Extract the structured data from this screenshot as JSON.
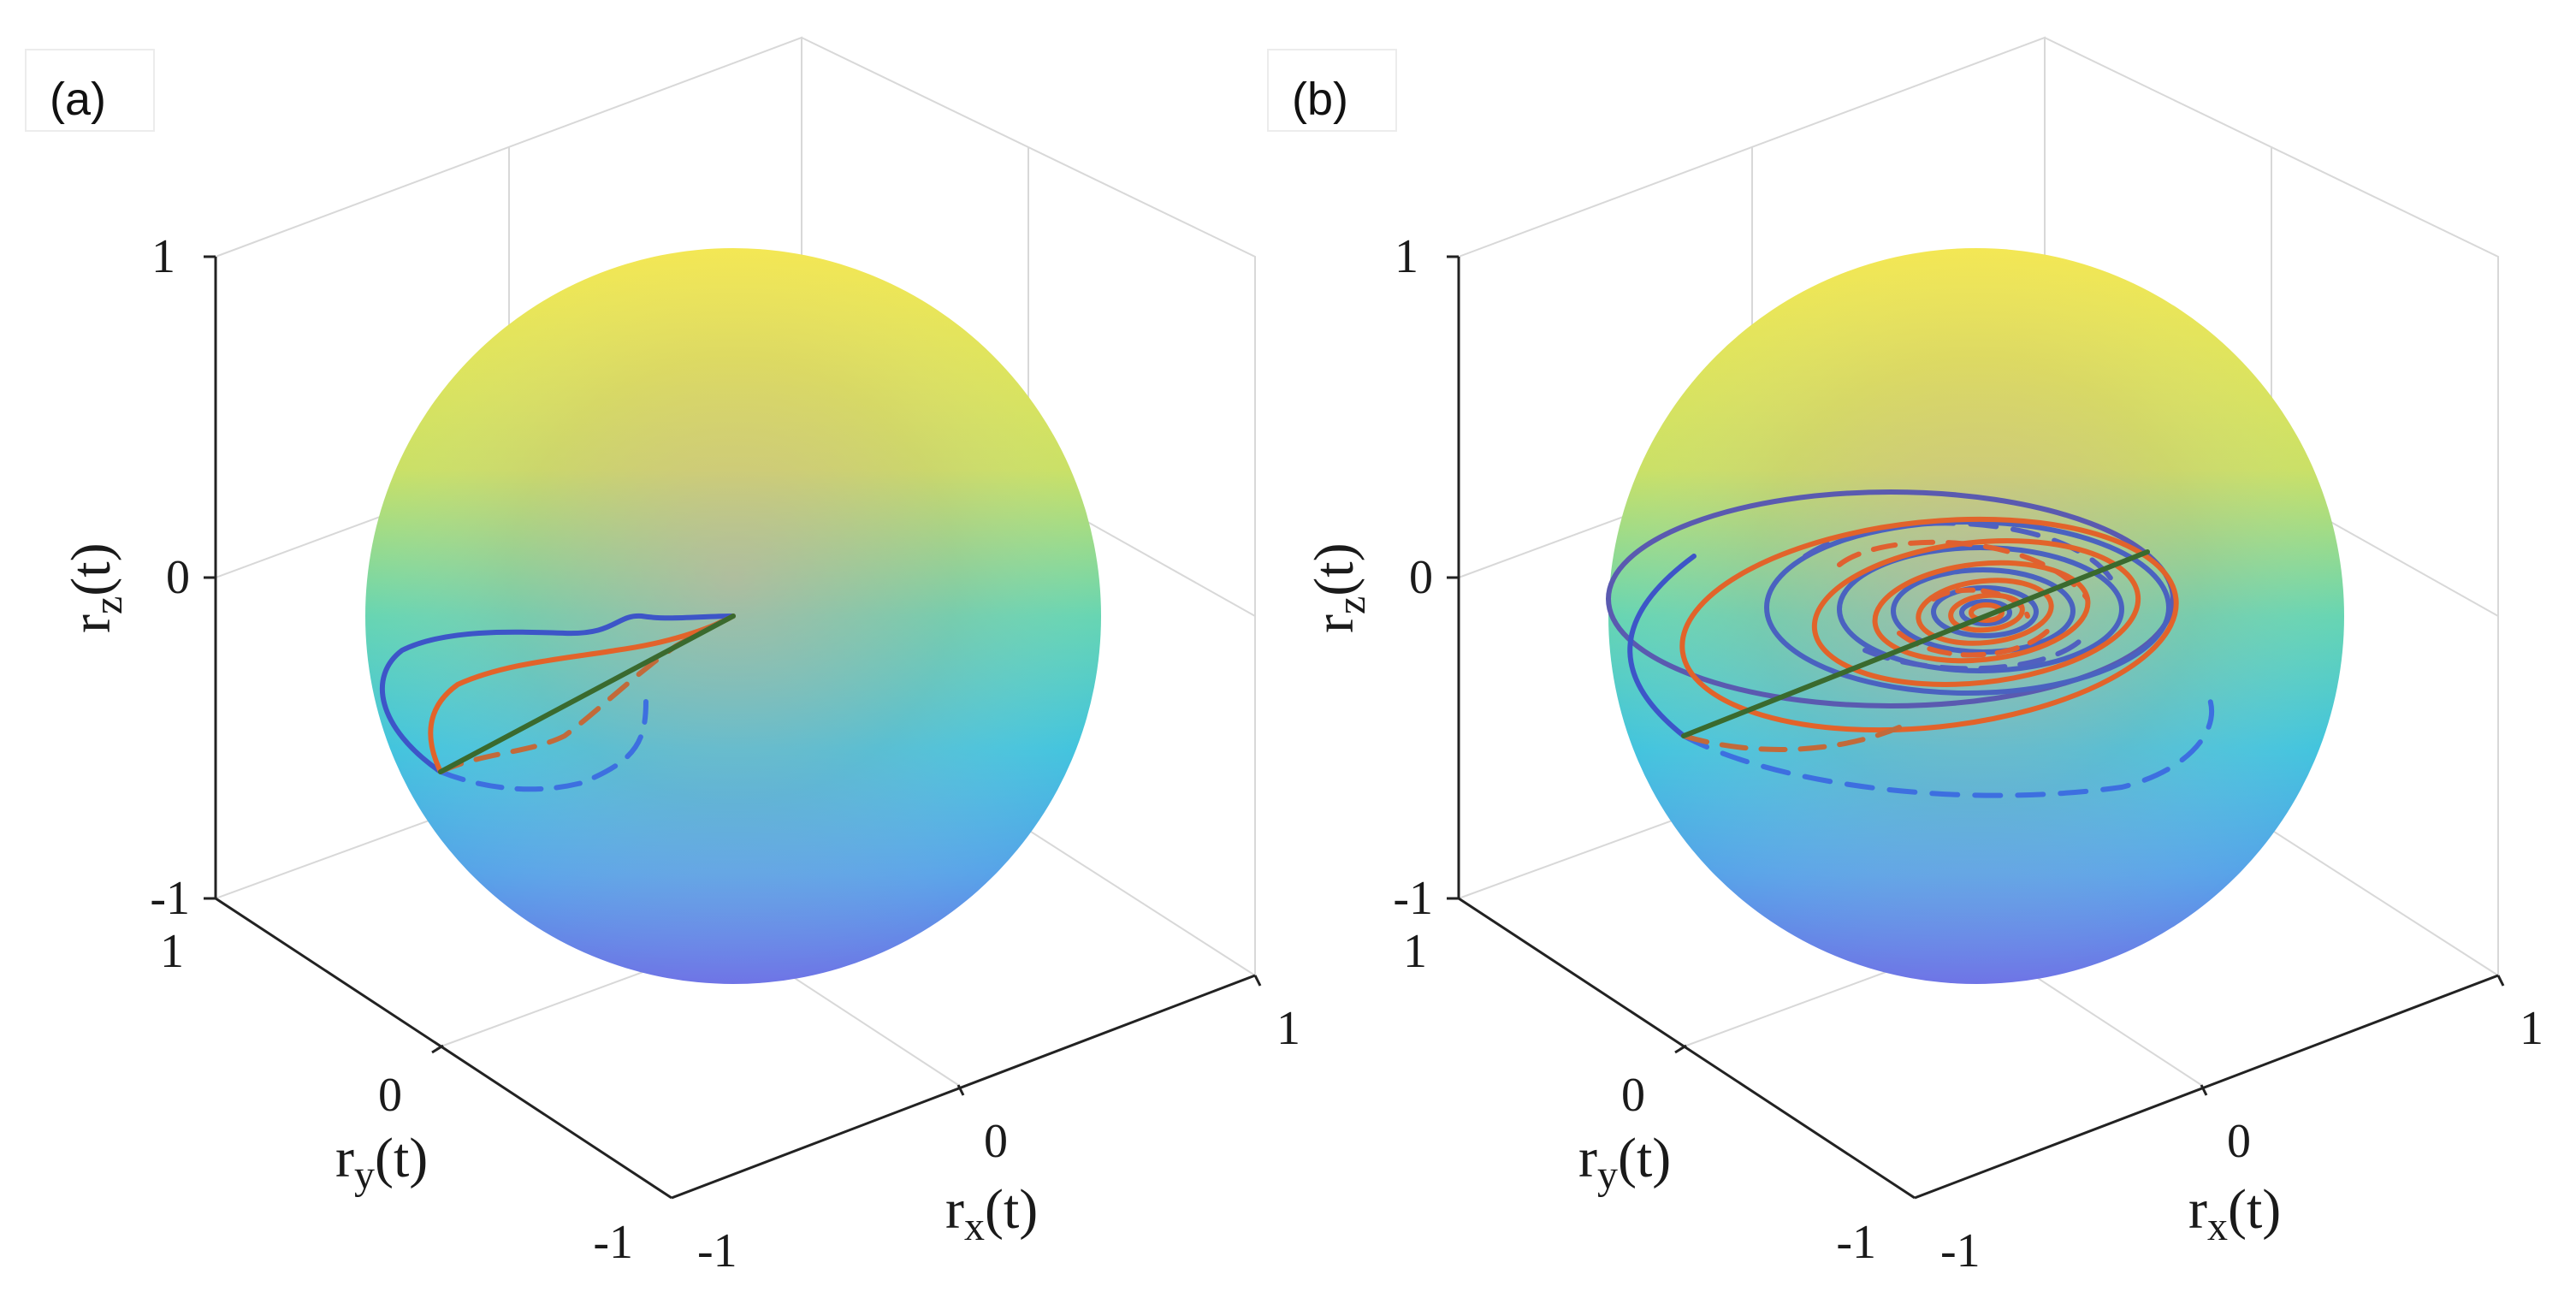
{
  "chart_data": [
    {
      "type": "line",
      "subtype": "3d-trajectory-on-bloch-sphere",
      "panel_label": "(a)",
      "title": "",
      "xlabel": "r_x(t)",
      "ylabel": "r_y(t)",
      "zlabel": "r_z(t)",
      "x_ticks": [
        "-1",
        "0",
        "1"
      ],
      "y_ticks": [
        "-1",
        "0",
        "1"
      ],
      "z_ticks": [
        "-1",
        "0",
        "1"
      ],
      "xlim": [
        -1,
        1
      ],
      "ylim": [
        -1,
        1
      ],
      "zlim": [
        -1,
        1
      ],
      "grid": true,
      "legend": "none",
      "colors": {
        "blue_solid": "#3d55c8",
        "blue_dashed": "#3d6fe0",
        "orange_solid": "#e2632a",
        "orange_dashed": "#c26a3a",
        "green_line": "#3a6a2e",
        "sphere_top": "#f4e84a",
        "sphere_middle": "#3fc8d8",
        "sphere_bottom": "#6d7ae6"
      },
      "series": [
        {
          "color": "blue",
          "style": "solid",
          "points": [
            [
              0.0,
              -0.95,
              -0.25
            ],
            [
              0.15,
              -0.95,
              -0.05
            ],
            [
              0.35,
              -0.8,
              0.05
            ],
            [
              0.5,
              -0.55,
              0.05
            ],
            [
              0.65,
              -0.3,
              0.02
            ],
            [
              0.7,
              -0.2,
              0.05
            ],
            [
              0.75,
              -0.1,
              0.1
            ]
          ]
        },
        {
          "color": "blue",
          "style": "dashed",
          "points": [
            [
              0.0,
              -0.95,
              -0.25
            ],
            [
              0.1,
              -0.8,
              -0.45
            ],
            [
              0.3,
              -0.55,
              -0.55
            ],
            [
              0.5,
              -0.4,
              -0.45
            ],
            [
              0.65,
              -0.25,
              -0.3
            ],
            [
              0.75,
              -0.1,
              0.1
            ]
          ]
        },
        {
          "color": "orange",
          "style": "solid",
          "points": [
            [
              0.0,
              -0.95,
              -0.25
            ],
            [
              0.15,
              -0.85,
              -0.1
            ],
            [
              0.35,
              -0.65,
              -0.05
            ],
            [
              0.55,
              -0.4,
              0.0
            ],
            [
              0.75,
              -0.1,
              0.1
            ]
          ]
        },
        {
          "color": "orange",
          "style": "dashed",
          "points": [
            [
              0.0,
              -0.95,
              -0.25
            ],
            [
              0.15,
              -0.7,
              -0.35
            ],
            [
              0.35,
              -0.5,
              -0.3
            ],
            [
              0.55,
              -0.3,
              -0.15
            ],
            [
              0.75,
              -0.1,
              0.1
            ]
          ]
        },
        {
          "color": "green",
          "style": "solid",
          "points": [
            [
              0.0,
              -0.95,
              -0.25
            ],
            [
              0.75,
              -0.1,
              0.1
            ]
          ]
        }
      ]
    },
    {
      "type": "line",
      "subtype": "3d-trajectory-on-bloch-sphere",
      "panel_label": "(b)",
      "title": "",
      "xlabel": "r_x(t)",
      "ylabel": "r_y(t)",
      "zlabel": "r_z(t)",
      "x_ticks": [
        "-1",
        "0",
        "1"
      ],
      "y_ticks": [
        "-1",
        "0",
        "1"
      ],
      "z_ticks": [
        "-1",
        "0",
        "1"
      ],
      "xlim": [
        -1,
        1
      ],
      "ylim": [
        -1,
        1
      ],
      "zlim": [
        -1,
        1
      ],
      "grid": true,
      "legend": "none",
      "colors": {
        "blue_solid": "#3d55c8",
        "blue_dashed": "#3d6fe0",
        "orange_solid": "#e2632a",
        "orange_dashed": "#c26a3a",
        "green_line": "#3a6a2e",
        "sphere_top": "#f4e84a",
        "sphere_middle": "#3fc8d8",
        "sphere_bottom": "#6d7ae6"
      },
      "series": [
        {
          "color": "blue",
          "style": "solid",
          "description": "inward spiral converging to the center, starting at the sphere edge",
          "start": [
            0.0,
            -0.95,
            -0.25
          ],
          "center": [
            0.3,
            -0.3,
            0.0
          ],
          "turns": 6
        },
        {
          "color": "blue",
          "style": "dashed",
          "description": "inward spiral (opposite phase), starting at the sphere edge",
          "start": [
            0.0,
            -0.95,
            -0.25
          ],
          "center": [
            0.3,
            -0.3,
            0.0
          ],
          "turns": 5
        },
        {
          "color": "orange",
          "style": "solid",
          "description": "inward spiral converging to the center",
          "start": [
            0.0,
            -0.95,
            -0.25
          ],
          "center": [
            0.3,
            -0.3,
            0.0
          ],
          "turns": 7
        },
        {
          "color": "orange",
          "style": "dashed",
          "description": "inward spiral converging to the center",
          "start": [
            0.0,
            -0.95,
            -0.25
          ],
          "center": [
            0.3,
            -0.3,
            0.0
          ],
          "turns": 6
        },
        {
          "color": "green",
          "style": "solid",
          "points": [
            [
              0.0,
              -0.95,
              -0.25
            ],
            [
              0.9,
              0.35,
              0.25
            ]
          ]
        }
      ]
    }
  ]
}
